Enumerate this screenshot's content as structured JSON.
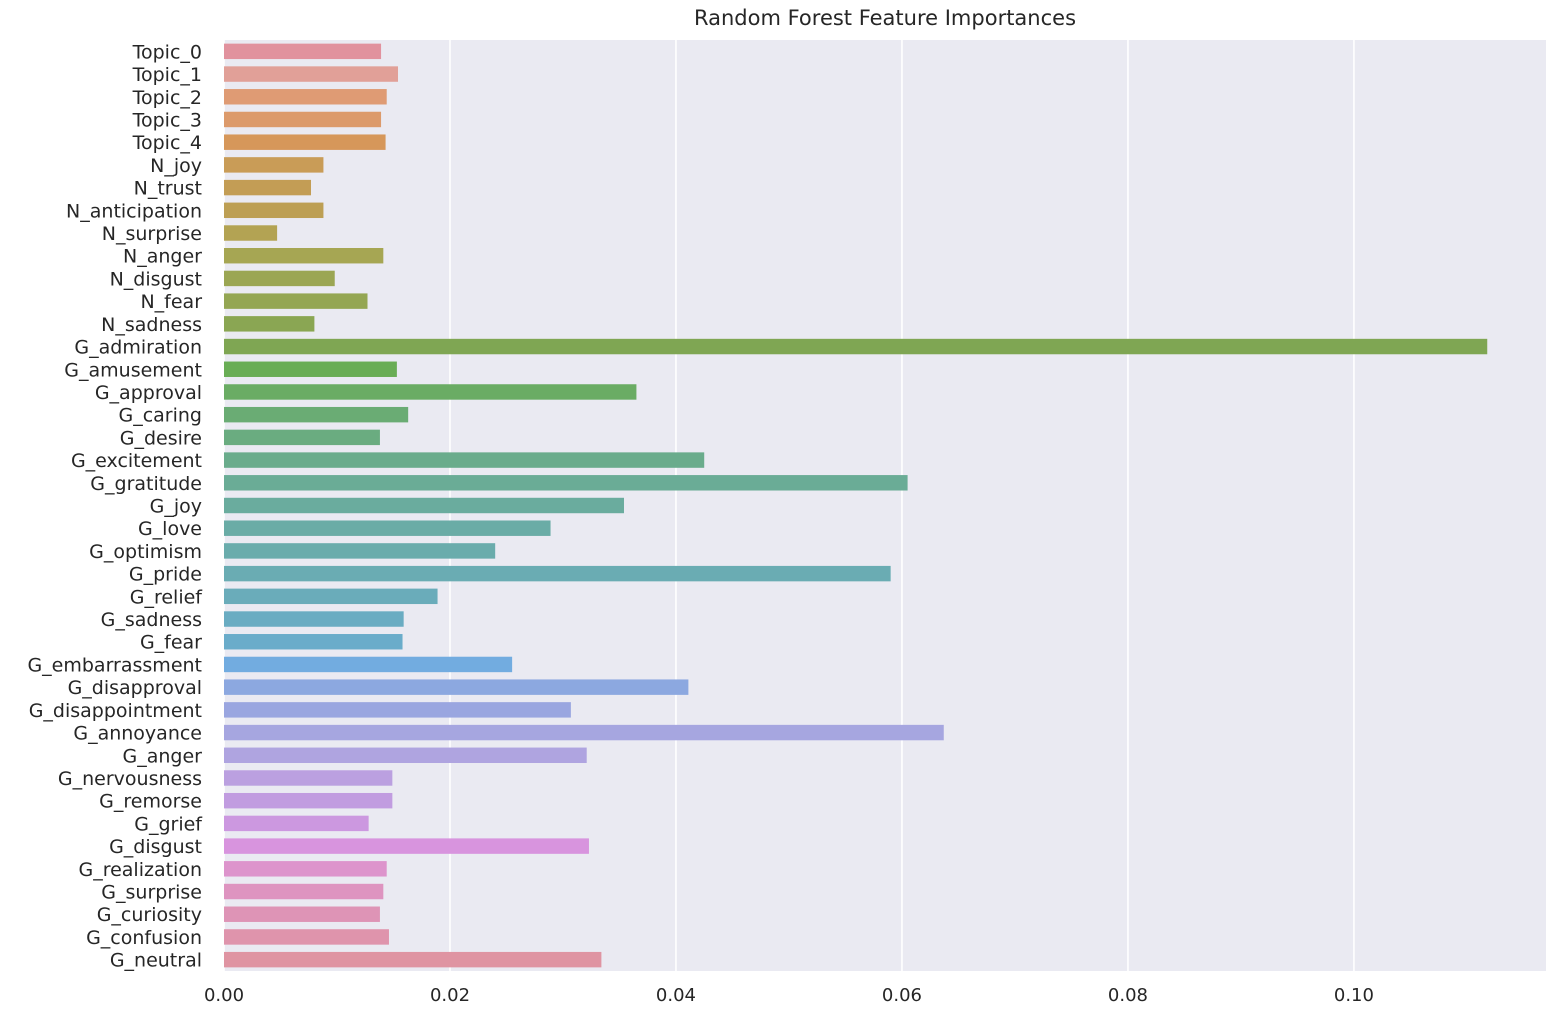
{
  "chart_data": {
    "type": "bar",
    "orientation": "horizontal",
    "title": "Random Forest Feature Importances",
    "xlabel": "",
    "ylabel": "",
    "xlim": [
      0,
      0.117
    ],
    "xticks": [
      "0.00",
      "0.02",
      "0.04",
      "0.06",
      "0.08",
      "0.10"
    ],
    "xtick_values": [
      0,
      0.02,
      0.04,
      0.06,
      0.08,
      0.1
    ],
    "grid": true,
    "style": "seaborn-darkgrid",
    "colors": {
      "background": "#eaeaf2",
      "grid": "#ffffff",
      "palette": [
        "#e1929e",
        "#e1a098",
        "#df9b74",
        "#dc9a6b",
        "#d6975a",
        "#c99c57",
        "#c39d55",
        "#bd9f54",
        "#b3a353",
        "#a6a653",
        "#9ba653",
        "#94a653",
        "#8aa653",
        "#7fa653",
        "#69ad55",
        "#6aac64",
        "#6aac74",
        "#6aac80",
        "#6aac8c",
        "#6aac96",
        "#6aac9e",
        "#6aaca6",
        "#6aacac",
        "#6aacb3",
        "#6aacba",
        "#6aacc2",
        "#6aacca",
        "#72ace0",
        "#8ca8e0",
        "#9aa6e0",
        "#a6a6e0",
        "#afa4e0",
        "#bba0e0",
        "#c19ce0",
        "#cc98e0",
        "#d894de",
        "#dd94cc",
        "#de94c0",
        "#de94b6",
        "#df94ac",
        "#df94a2"
      ]
    },
    "categories": [
      "Topic_0",
      "Topic_1",
      "Topic_2",
      "Topic_3",
      "Topic_4",
      "N_joy",
      "N_trust",
      "N_anticipation",
      "N_surprise",
      "N_anger",
      "N_disgust",
      "N_fear",
      "N_sadness",
      "G_admiration",
      "G_amusement",
      "G_approval",
      "G_caring",
      "G_desire",
      "G_excitement",
      "G_gratitude",
      "G_joy",
      "G_love",
      "G_optimism",
      "G_pride",
      "G_relief",
      "G_sadness",
      "G_fear",
      "G_embarrassment",
      "G_disapproval",
      "G_disappointment",
      "G_annoyance",
      "G_anger",
      "G_nervousness",
      "G_remorse",
      "G_grief",
      "G_disgust",
      "G_realization",
      "G_surprise",
      "G_curiosity",
      "G_confusion",
      "G_neutral"
    ],
    "values": [
      0.0139,
      0.0154,
      0.0144,
      0.0139,
      0.0143,
      0.0088,
      0.0077,
      0.0088,
      0.0047,
      0.0141,
      0.0098,
      0.0127,
      0.008,
      0.1118,
      0.0153,
      0.0365,
      0.0163,
      0.0138,
      0.0425,
      0.0605,
      0.0354,
      0.0289,
      0.024,
      0.059,
      0.0189,
      0.0159,
      0.0158,
      0.0255,
      0.0411,
      0.0307,
      0.0637,
      0.0321,
      0.0149,
      0.0149,
      0.0128,
      0.0323,
      0.0144,
      0.0141,
      0.0138,
      0.0146,
      0.0334
    ]
  }
}
